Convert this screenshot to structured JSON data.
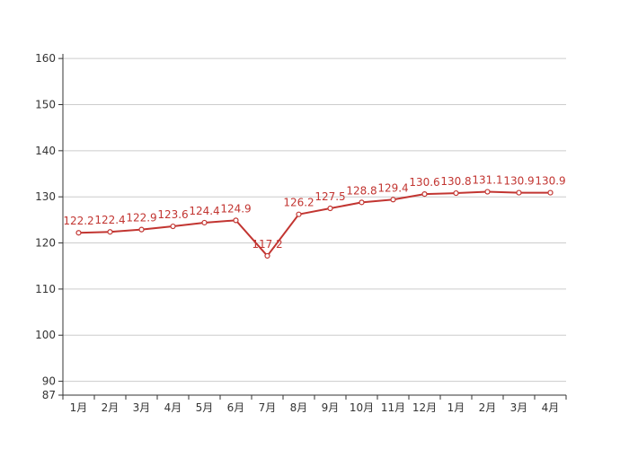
{
  "chart_data": {
    "type": "line",
    "title": "",
    "xlabel": "",
    "ylabel": "",
    "categories": [
      "1月",
      "2月",
      "3月",
      "4月",
      "5月",
      "6月",
      "7月",
      "8月",
      "9月",
      "10月",
      "11月",
      "12月",
      "1月",
      "2月",
      "3月",
      "4月"
    ],
    "series": [
      {
        "values": [
          122.2,
          122.4,
          122.9,
          123.6,
          124.4,
          124.9,
          117.2,
          126.2,
          127.5,
          128.8,
          129.4,
          130.6,
          130.8,
          131.1,
          130.9,
          130.9
        ],
        "color": "#c23531"
      }
    ],
    "ylim": [
      87,
      161
    ],
    "yticks": [
      87,
      90,
      100,
      110,
      120,
      130,
      140,
      150,
      160
    ],
    "grid": true,
    "legend": "none",
    "colors": {
      "line": "#c23531",
      "axis": "#333333",
      "grid": "#cccccc"
    }
  }
}
